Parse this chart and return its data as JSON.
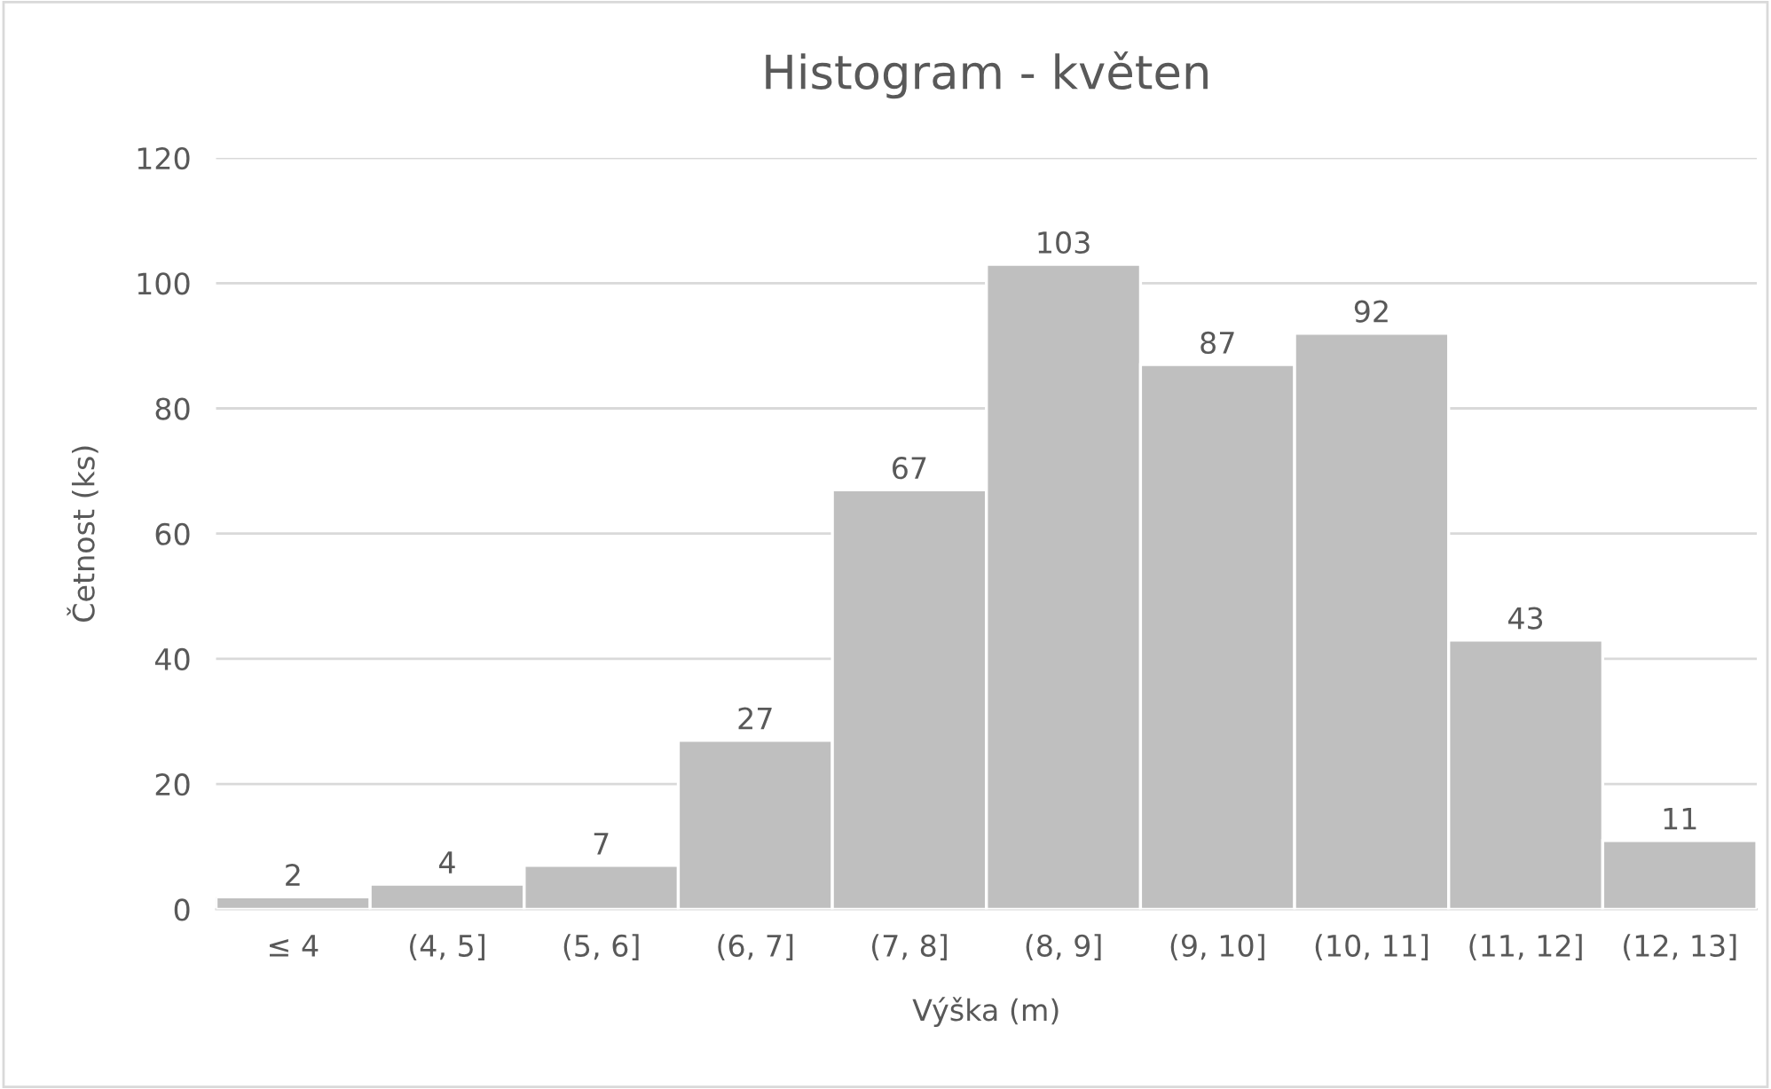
{
  "chart_data": {
    "type": "bar",
    "title": "Histogram - květen",
    "xlabel": "Výška (m)",
    "ylabel": "Četnost (ks)",
    "categories": [
      "≤ 4",
      "(4, 5]",
      "(5, 6]",
      "(6, 7]",
      "(7, 8]",
      "(8, 9]",
      "(9, 10]",
      "(10, 11]",
      "(11, 12]",
      "(12, 13]"
    ],
    "values": [
      2,
      4,
      7,
      27,
      67,
      103,
      87,
      92,
      43,
      11
    ],
    "color": "#bfbfbf",
    "ylim": [
      0,
      120
    ],
    "yticks": [
      0,
      20,
      40,
      60,
      80,
      100,
      120
    ],
    "grid": "y",
    "data_labels": true,
    "legend": false
  }
}
